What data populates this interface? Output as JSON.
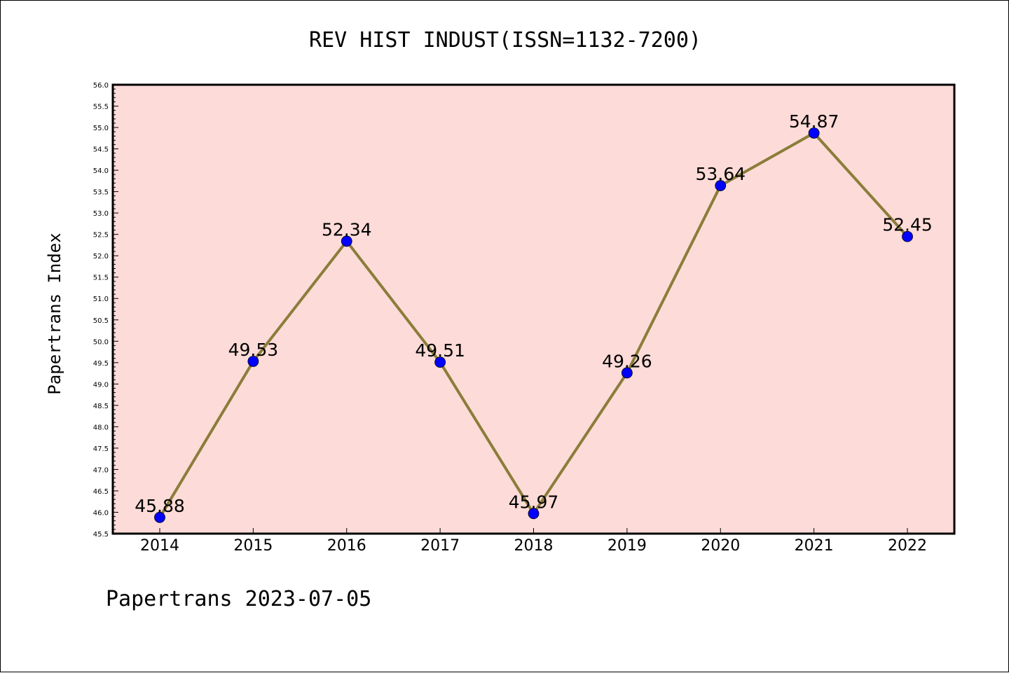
{
  "chart_data": {
    "type": "line",
    "title": "REV HIST INDUST(ISSN=1132-7200)",
    "xlabel": "",
    "ylabel": "Papertrans Index",
    "categories": [
      "2014",
      "2015",
      "2016",
      "2017",
      "2018",
      "2019",
      "2020",
      "2021",
      "2022"
    ],
    "series": [
      {
        "values": [
          45.88,
          49.53,
          52.34,
          49.51,
          45.97,
          49.26,
          53.64,
          54.87,
          52.45
        ]
      }
    ],
    "data_labels": [
      "45.88",
      "49.53",
      "52.34",
      "49.51",
      "45.97",
      "49.26",
      "53.64",
      "54.87",
      "52.45"
    ],
    "ylim": [
      45.5,
      56.0
    ],
    "yticks": [
      "45.5",
      "46.0",
      "46.5",
      "47.0",
      "47.5",
      "48.0",
      "48.5",
      "49.0",
      "49.5",
      "50.0",
      "50.5",
      "51.0",
      "51.5",
      "52.0",
      "52.5",
      "53.0",
      "53.5",
      "54.0",
      "54.5",
      "55.0",
      "55.5",
      "56.0"
    ],
    "grid": false,
    "legend": "none",
    "colors": {
      "plot_background": "#fddbd8",
      "line": "#8b7d3a",
      "marker": "#0000ff"
    }
  },
  "footer": "Papertrans 2023-07-05"
}
